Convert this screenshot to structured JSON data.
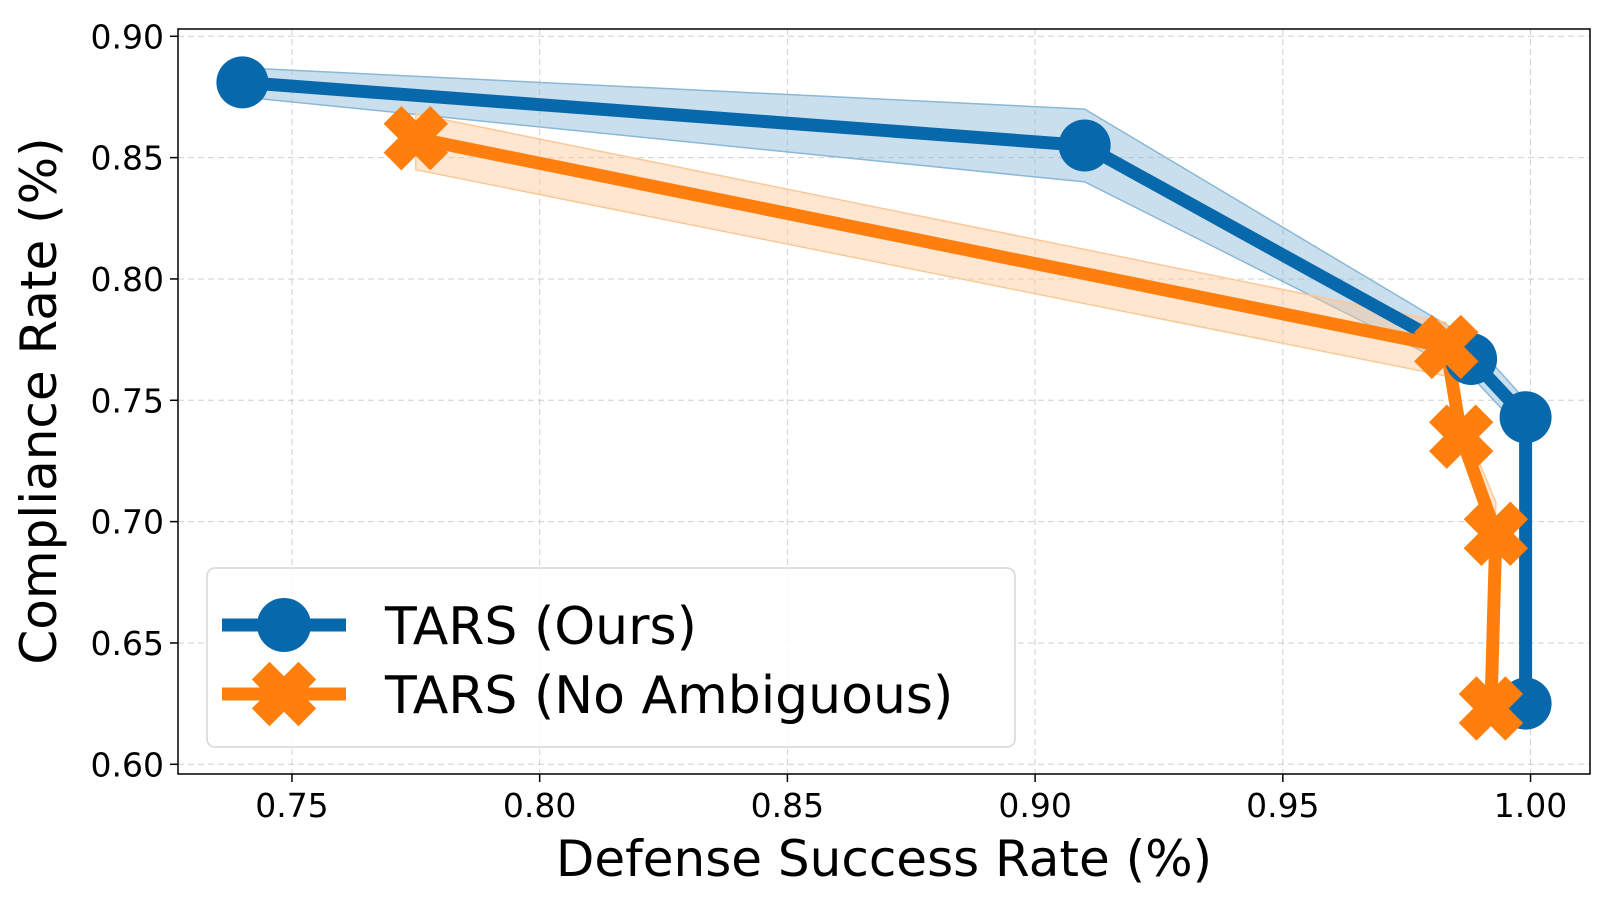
{
  "chart_data": {
    "type": "line",
    "title": "",
    "xlabel": "Defense Success Rate (%)",
    "ylabel": "Compliance Rate (%)",
    "xlim": [
      0.727,
      1.012
    ],
    "ylim": [
      0.596,
      0.903
    ],
    "xticks": [
      0.75,
      0.8,
      0.85,
      0.9,
      0.95,
      1.0
    ],
    "xtick_labels": [
      "0.75",
      "0.80",
      "0.85",
      "0.90",
      "0.95",
      "1.00"
    ],
    "yticks": [
      0.6,
      0.65,
      0.7,
      0.75,
      0.8,
      0.85,
      0.9
    ],
    "ytick_labels": [
      "0.60",
      "0.65",
      "0.70",
      "0.75",
      "0.80",
      "0.85",
      "0.90"
    ],
    "grid": true,
    "legend_position": "lower-left",
    "series": [
      {
        "name": "TARS (Ours)",
        "color": "#0868AC",
        "band_color": "#8AB8D6",
        "marker": "circle",
        "x": [
          0.74,
          0.91,
          0.988,
          0.999,
          0.999
        ],
        "y": [
          0.881,
          0.855,
          0.767,
          0.743,
          0.625
        ],
        "lower": [
          0.875,
          0.84,
          0.76,
          0.736,
          0.62
        ],
        "upper": [
          0.887,
          0.87,
          0.775,
          0.75,
          0.63
        ]
      },
      {
        "name": "TARS (No Ambiguous)",
        "color": "#FF7F0E",
        "band_color": "#FDC898",
        "marker": "x",
        "x": [
          0.775,
          0.983,
          0.986,
          0.993,
          0.992
        ],
        "y": [
          0.858,
          0.772,
          0.735,
          0.695,
          0.623
        ],
        "lower": [
          0.845,
          0.76,
          0.728,
          0.688,
          0.62
        ],
        "upper": [
          0.868,
          0.782,
          0.742,
          0.708,
          0.628
        ]
      }
    ]
  }
}
